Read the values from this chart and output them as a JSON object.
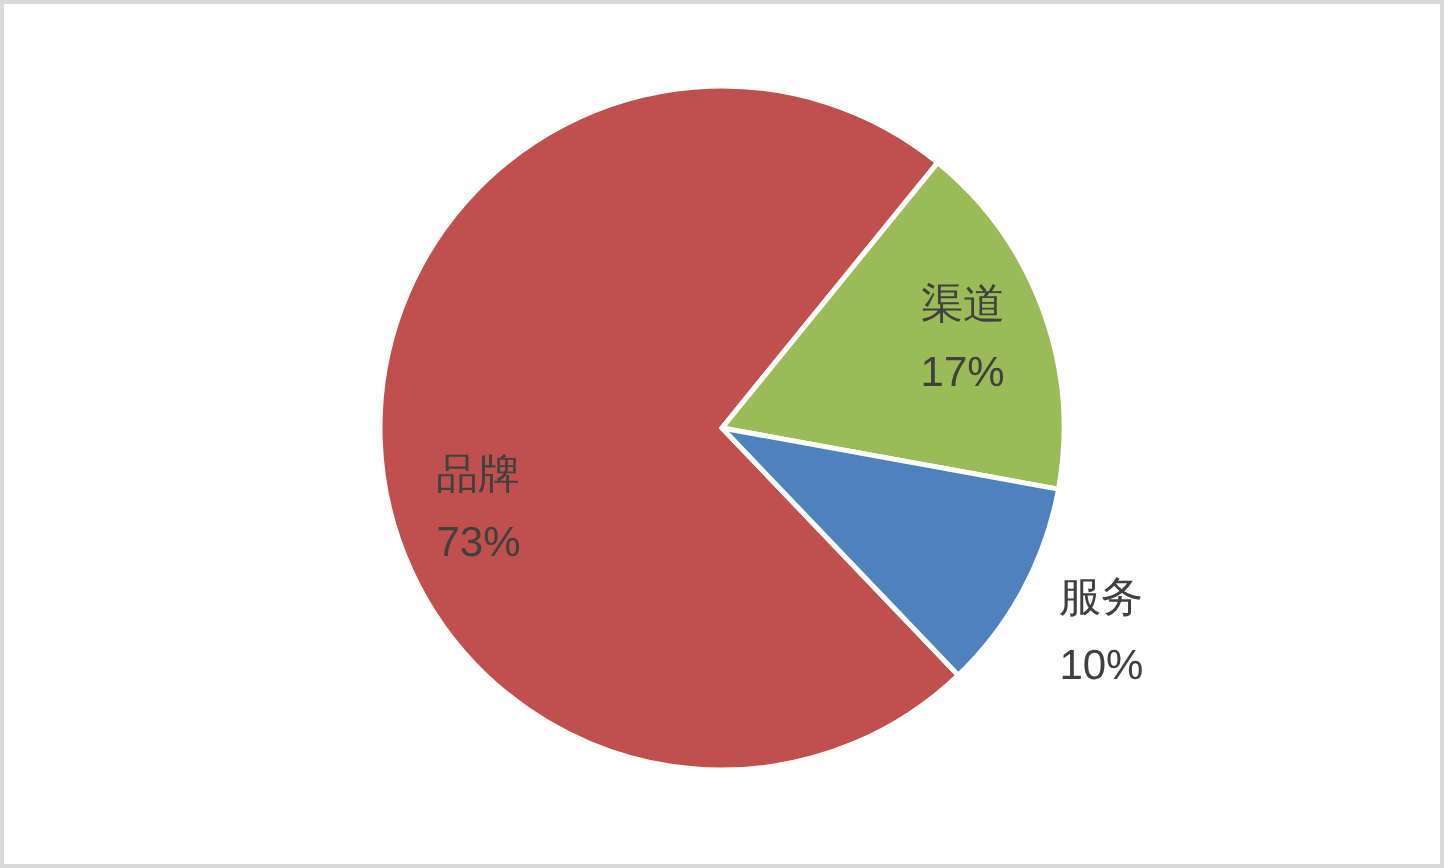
{
  "chart_data": {
    "type": "pie",
    "categories": [
      "品牌",
      "渠道",
      "服务"
    ],
    "values": [
      73,
      17,
      10
    ],
    "colors": [
      "#c0504d",
      "#9bbb59",
      "#4f81bd"
    ],
    "value_labels": [
      "73%",
      "17%",
      "10%"
    ]
  }
}
